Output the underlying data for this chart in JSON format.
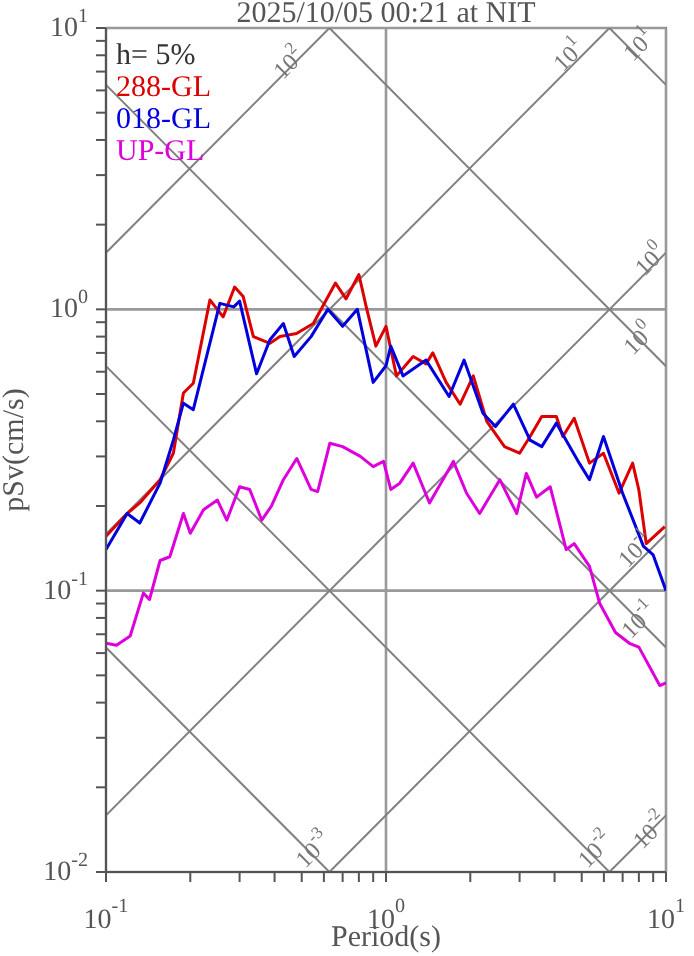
{
  "chart_data": {
    "type": "line",
    "title": "2025/10/05 00:21 at NIT",
    "xlabel": "Period(s)",
    "ylabel": "pSv(cm/s)",
    "log": "xy",
    "grid": true,
    "legend": "top left",
    "marker": "none",
    "line_style": "solid",
    "xlim": [
      0.1,
      10
    ],
    "ylim": [
      0.01,
      10
    ],
    "xticks": [
      {
        "value": 0.1,
        "label": "10$^{-1}$"
      },
      {
        "value": 0.2,
        "label": null
      },
      {
        "value": 0.3,
        "label": null
      },
      {
        "value": 0.4,
        "label": null
      },
      {
        "value": 0.5,
        "label": null
      },
      {
        "value": 0.6,
        "label": null
      },
      {
        "value": 0.7,
        "label": null
      },
      {
        "value": 0.8,
        "label": null
      },
      {
        "value": 0.9,
        "label": null
      },
      {
        "value": 1,
        "label": "10$^{0}$"
      },
      {
        "value": 2,
        "label": null
      },
      {
        "value": 3,
        "label": null
      },
      {
        "value": 4,
        "label": null
      },
      {
        "value": 5,
        "label": null
      },
      {
        "value": 6,
        "label": null
      },
      {
        "value": 7,
        "label": null
      },
      {
        "value": 8,
        "label": null
      },
      {
        "value": 9,
        "label": null
      },
      {
        "value": 10,
        "label": "10$^{1}$"
      }
    ],
    "yticks": [
      {
        "value": 0.01,
        "label": "10$^{-2}$"
      },
      {
        "value": 0.02,
        "label": null
      },
      {
        "value": 0.03,
        "label": null
      },
      {
        "value": 0.04,
        "label": null
      },
      {
        "value": 0.05,
        "label": null
      },
      {
        "value": 0.06,
        "label": null
      },
      {
        "value": 0.07,
        "label": null
      },
      {
        "value": 0.08,
        "label": null
      },
      {
        "value": 0.09,
        "label": null
      },
      {
        "value": 0.1,
        "label": "10$^{-1}$"
      },
      {
        "value": 0.2,
        "label": null
      },
      {
        "value": 0.3,
        "label": null
      },
      {
        "value": 0.4,
        "label": null
      },
      {
        "value": 0.5,
        "label": null
      },
      {
        "value": 0.6,
        "label": null
      },
      {
        "value": 0.7,
        "label": null
      },
      {
        "value": 0.8,
        "label": null
      },
      {
        "value": 0.9,
        "label": null
      },
      {
        "value": 1,
        "label": "10$^{0}$"
      },
      {
        "value": 2,
        "label": null
      },
      {
        "value": 3,
        "label": null
      },
      {
        "value": 4,
        "label": null
      },
      {
        "value": 5,
        "label": null
      },
      {
        "value": 6,
        "label": null
      },
      {
        "value": 7,
        "label": null
      },
      {
        "value": 8,
        "label": null
      },
      {
        "value": 9,
        "label": null
      },
      {
        "value": 10,
        "label": "10$^{1}$"
      }
    ],
    "annotations": [
      "h= 5%",
      {
        "text": "10$^{2}$",
        "x": 0.45,
        "y": 7.5
      },
      {
        "text": "10$^{1}$",
        "x": 4.5,
        "y": 8.0
      },
      {
        "text": "10$^{1}$",
        "x": 8.0,
        "y": 8.7
      },
      {
        "text": "10$^{0}$",
        "x": 8.8,
        "y": 1.5
      },
      {
        "text": "10$^{0}$",
        "x": 8.0,
        "y": 0.785
      },
      {
        "text": "10$^{-1}$",
        "x": 7.8,
        "y": 0.14
      },
      {
        "text": "10$^{-1}$",
        "x": 8.0,
        "y": 0.0785
      },
      {
        "text": "10$^{-3}$",
        "x": 0.55,
        "y": 0.012
      },
      {
        "text": "10$^{-2}$",
        "x": 5.6,
        "y": 0.012
      },
      {
        "text": "10$^{-2}$",
        "x": 8.8,
        "y": 0.014
      }
    ],
    "series": [
      {
        "color": "#808080",
        "x": [
          6.28,
          10
        ],
        "values": [
          10,
          6.28
        ]
      },
      {
        "color": "#808080",
        "x": [
          0.628,
          10
        ],
        "values": [
          10,
          0.628
        ]
      },
      {
        "color": "#808080",
        "x": [
          0.1,
          10
        ],
        "values": [
          6.28,
          0.0628
        ]
      },
      {
        "color": "#808080",
        "x": [
          0.1,
          6.28
        ],
        "values": [
          0.628,
          0.01
        ]
      },
      {
        "color": "#808080",
        "x": [
          0.1,
          0.628
        ],
        "values": [
          0.0628,
          0.01
        ]
      },
      {
        "color": "#808080",
        "x": [
          0.1,
          0.628
        ],
        "values": [
          1.59,
          10
        ]
      },
      {
        "color": "#808080",
        "x": [
          0.1,
          6.28
        ],
        "values": [
          0.159,
          10
        ]
      },
      {
        "color": "#808080",
        "x": [
          0.1,
          10
        ],
        "values": [
          0.0159,
          1.59
        ]
      },
      {
        "color": "#808080",
        "x": [
          0.628,
          10
        ],
        "values": [
          0.01,
          0.159
        ]
      },
      {
        "color": "#808080",
        "x": [
          6.28,
          10
        ],
        "values": [
          0.01,
          0.0159
        ]
      },
      {
        "name": "288-GL",
        "color": "#dd0000",
        "x": [
          0.1,
          0.119,
          0.132,
          0.156,
          0.174,
          0.189,
          0.205,
          0.235,
          0.262,
          0.288,
          0.309,
          0.336,
          0.385,
          0.418,
          0.479,
          0.55,
          0.66,
          0.72,
          0.8,
          0.85,
          0.92,
          1.0,
          1.09,
          1.25,
          1.39,
          1.47,
          1.64,
          1.84,
          2.05,
          2.29,
          2.65,
          3.0,
          3.27,
          3.6,
          4.06,
          4.28,
          4.7,
          5.33,
          5.98,
          6.8,
          7.6,
          8.0,
          8.5,
          9.9
        ],
        "values": [
          0.156,
          0.188,
          0.205,
          0.248,
          0.308,
          0.504,
          0.546,
          1.08,
          0.94,
          1.2,
          1.11,
          0.8,
          0.757,
          0.8,
          0.82,
          0.89,
          1.24,
          1.09,
          1.33,
          1.02,
          0.74,
          0.87,
          0.58,
          0.68,
          0.64,
          0.7,
          0.55,
          0.46,
          0.58,
          0.4,
          0.325,
          0.308,
          0.353,
          0.416,
          0.416,
          0.353,
          0.41,
          0.284,
          0.308,
          0.222,
          0.284,
          0.228,
          0.147,
          0.169
        ]
      },
      {
        "name": "018-GL",
        "color": "#0000dd",
        "x": [
          0.1,
          0.119,
          0.132,
          0.156,
          0.174,
          0.189,
          0.205,
          0.255,
          0.286,
          0.3,
          0.345,
          0.385,
          0.43,
          0.47,
          0.54,
          0.62,
          0.7,
          0.79,
          0.9,
          1.0,
          1.04,
          1.15,
          1.39,
          1.68,
          1.9,
          2.22,
          2.46,
          2.85,
          3.27,
          3.6,
          4.06,
          4.9,
          5.33,
          5.98,
          7.0,
          8.3,
          9.0,
          10
        ],
        "values": [
          0.14,
          0.188,
          0.174,
          0.241,
          0.343,
          0.464,
          0.44,
          1.05,
          1.02,
          1.07,
          0.59,
          0.78,
          0.89,
          0.68,
          0.8,
          1.0,
          0.87,
          1.0,
          0.55,
          0.63,
          0.74,
          0.58,
          0.66,
          0.49,
          0.66,
          0.427,
          0.383,
          0.46,
          0.343,
          0.325,
          0.394,
          0.284,
          0.248,
          0.353,
          0.222,
          0.144,
          0.134,
          0.1
        ]
      },
      {
        "name": "UP-GL",
        "color": "#dd00dd",
        "x": [
          0.1,
          0.109,
          0.122,
          0.136,
          0.143,
          0.156,
          0.169,
          0.189,
          0.2,
          0.223,
          0.25,
          0.27,
          0.3,
          0.326,
          0.36,
          0.39,
          0.43,
          0.48,
          0.54,
          0.57,
          0.63,
          0.7,
          0.81,
          0.9,
          0.98,
          1.04,
          1.12,
          1.25,
          1.43,
          1.74,
          1.94,
          2.16,
          2.55,
          2.93,
          3.17,
          3.45,
          3.86,
          4.4,
          4.7,
          5.33,
          5.8,
          6.6,
          7.4,
          8.0,
          9.5,
          10
        ],
        "values": [
          0.065,
          0.064,
          0.069,
          0.098,
          0.093,
          0.128,
          0.132,
          0.188,
          0.16,
          0.194,
          0.21,
          0.178,
          0.234,
          0.229,
          0.178,
          0.2,
          0.248,
          0.295,
          0.229,
          0.225,
          0.334,
          0.325,
          0.3,
          0.276,
          0.288,
          0.229,
          0.241,
          0.284,
          0.205,
          0.288,
          0.222,
          0.188,
          0.248,
          0.188,
          0.261,
          0.215,
          0.234,
          0.14,
          0.147,
          0.122,
          0.09,
          0.071,
          0.065,
          0.063,
          0.046,
          0.047
        ]
      }
    ]
  }
}
